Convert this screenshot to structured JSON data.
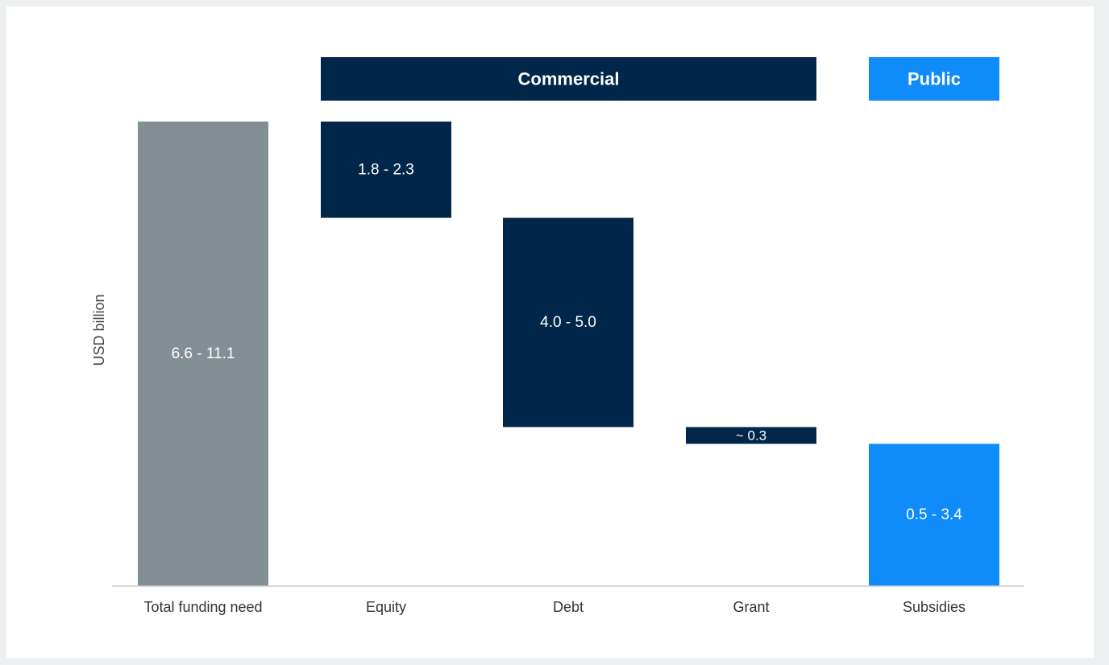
{
  "colors": {
    "total": "#848f95",
    "commercial": "#00264a",
    "public": "#0f8bfa",
    "page_background": "#edf0f1",
    "baseline": "#cccccc"
  },
  "chart_data": {
    "type": "bar",
    "subtype": "waterfall-range",
    "ylabel": "USD billion",
    "categories": [
      "Total funding need",
      "Equity",
      "Debt",
      "Grant",
      "Subsidies"
    ],
    "bars": [
      {
        "category": "Total funding need",
        "label": "6.6 - 11.1",
        "low": 6.6,
        "high": 11.1,
        "display_value": 11.1,
        "start": 0,
        "end": 11.1,
        "group": "total"
      },
      {
        "category": "Equity",
        "label": "1.8 - 2.3",
        "low": 1.8,
        "high": 2.3,
        "display_value": 2.3,
        "start": 8.8,
        "end": 11.1,
        "group": "commercial"
      },
      {
        "category": "Debt",
        "label": "4.0 - 5.0",
        "low": 4.0,
        "high": 5.0,
        "display_value": 5.0,
        "start": 3.8,
        "end": 8.8,
        "group": "commercial"
      },
      {
        "category": "Grant",
        "label": "~ 0.3",
        "low": 0.3,
        "high": 0.3,
        "display_value": 0.3,
        "start": 3.4,
        "end": 3.8,
        "group": "commercial"
      },
      {
        "category": "Subsidies",
        "label": "0.5 - 3.4",
        "low": 0.5,
        "high": 3.4,
        "display_value": 3.4,
        "start": 0,
        "end": 3.4,
        "group": "public"
      }
    ],
    "groups": [
      {
        "key": "commercial",
        "label": "Commercial",
        "categories": [
          "Equity",
          "Debt",
          "Grant"
        ]
      },
      {
        "key": "public",
        "label": "Public",
        "categories": [
          "Subsidies"
        ]
      }
    ],
    "ylim": [
      0,
      11.1
    ],
    "grid": false,
    "legend": "none"
  }
}
